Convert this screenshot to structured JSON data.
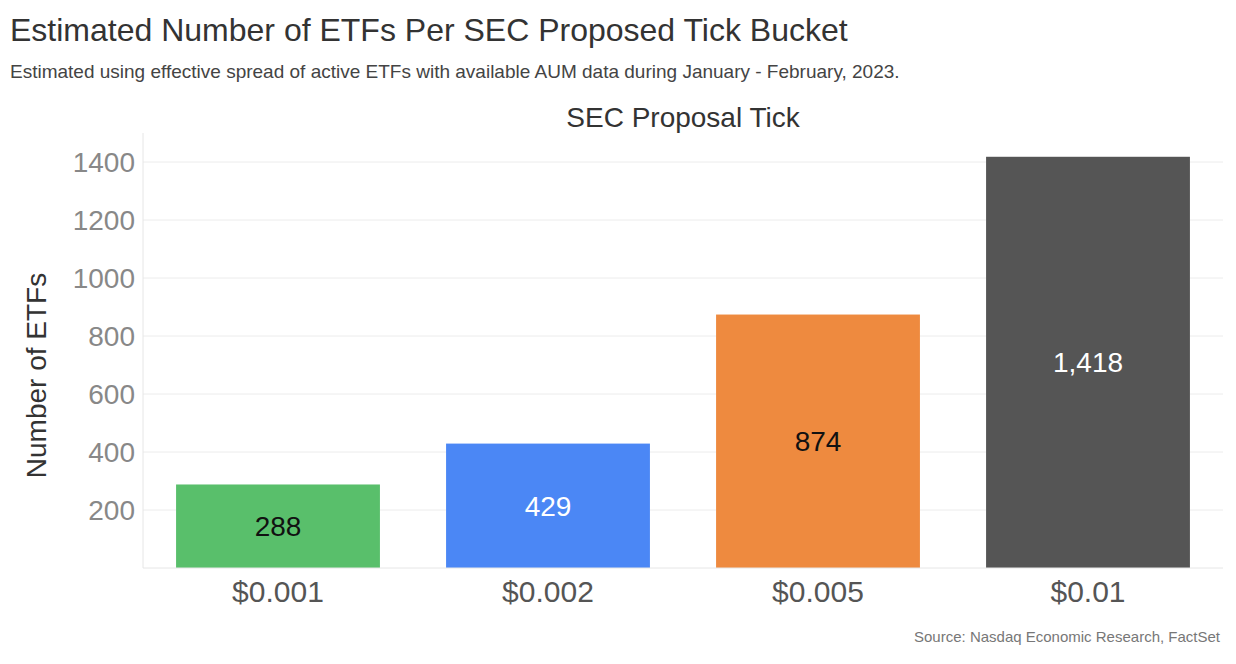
{
  "chart_data": {
    "type": "bar",
    "title": "Estimated Number of ETFs Per SEC Proposed Tick Bucket",
    "subtitle": "Estimated using effective spread of active ETFs with available AUM data during January - February, 2023.",
    "x_label": "SEC Proposal Tick",
    "y_label": "Number of ETFs",
    "source": "Source: Nasdaq Economic Research, FactSet",
    "categories": [
      "$0.001",
      "$0.002",
      "$0.005",
      "$0.01"
    ],
    "values": [
      288,
      429,
      874,
      1418
    ],
    "value_labels": [
      "288",
      "429",
      "874",
      "1,418"
    ],
    "colors": [
      "#59bf6b",
      "#4b87f5",
      "#ee8a3f",
      "#555555"
    ],
    "ylim": [
      0,
      1500
    ],
    "yticks": [
      200,
      400,
      600,
      800,
      1000,
      1200,
      1400
    ],
    "grid": true,
    "data_labels": true
  }
}
